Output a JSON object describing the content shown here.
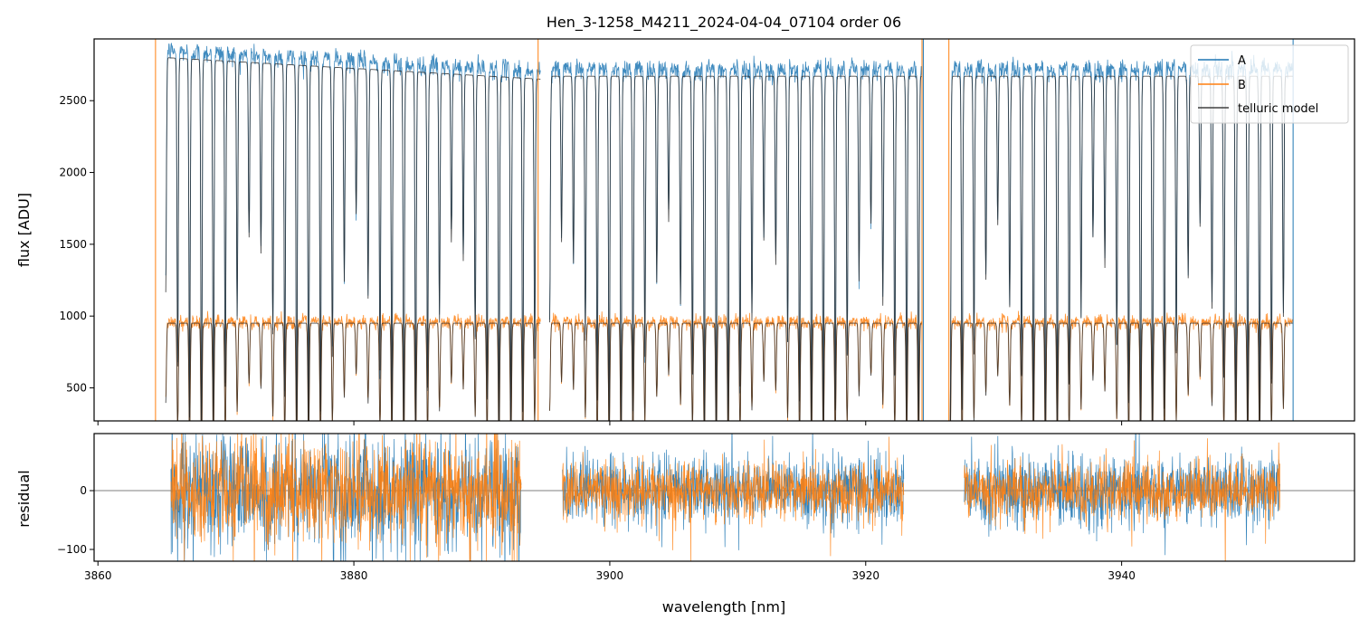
{
  "chart_data": [
    {
      "type": "line",
      "panel": "top",
      "title": "Hen_3-1258_M4211_2024-04-04_07104  order 06",
      "xlabel": "",
      "ylabel": "flux [ADU]",
      "xlim": [
        3859.7,
        3958.2
      ],
      "ylim": [
        270,
        2930
      ],
      "xticks": [
        3860,
        3880,
        3900,
        3920,
        3940
      ],
      "xtick_labels_shown": false,
      "yticks": [
        500,
        1000,
        1500,
        2000,
        2500
      ],
      "ytick_labels": [
        "500",
        "1000",
        "1500",
        "2000",
        "2500"
      ],
      "grid": false,
      "legend_placement": "top-right",
      "legend": [
        "A",
        "B",
        "telluric model"
      ],
      "segments": [
        [
          3865.3,
          3894.6
        ],
        [
          3895.3,
          3924.4
        ],
        [
          3926.6,
          3953.4
        ]
      ],
      "telluric_line_spacing_nm": 0.93,
      "series": [
        {
          "name": "A",
          "color": "#1f77b4",
          "continuum": 2720,
          "continuum_first_segment_start": 2850,
          "continuum_first_segment_end": 2700,
          "typical_line_depth": 0.55
        },
        {
          "name": "B",
          "color": "#ff7f0e",
          "continuum": 960,
          "typical_line_depth": 0.55
        },
        {
          "name": "telluric model",
          "color": "#404040",
          "overlays": [
            "A",
            "B"
          ]
        }
      ]
    },
    {
      "type": "line",
      "panel": "bottom",
      "xlabel": "wavelength [nm]",
      "ylabel": "residual",
      "xlim": [
        3859.7,
        3958.2
      ],
      "ylim": [
        -120,
        97
      ],
      "xticks": [
        3860,
        3880,
        3900,
        3920,
        3940
      ],
      "xtick_labels": [
        "3860",
        "3880",
        "3900",
        "3920",
        "3940"
      ],
      "yticks": [
        -100,
        0
      ],
      "ytick_labels": [
        "−100",
        "0"
      ],
      "zero_line": true,
      "grid": false,
      "segments": [
        [
          3865.7,
          3893.1
        ],
        [
          3896.3,
          3923.0
        ],
        [
          3927.7,
          3952.4
        ]
      ],
      "series": [
        {
          "name": "A",
          "color": "#1f77b4",
          "noise_sigma_first_segment": 50,
          "noise_sigma": 30
        },
        {
          "name": "B",
          "color": "#ff7f0e",
          "noise_sigma_first_segment": 45,
          "noise_sigma": 25
        }
      ]
    }
  ]
}
